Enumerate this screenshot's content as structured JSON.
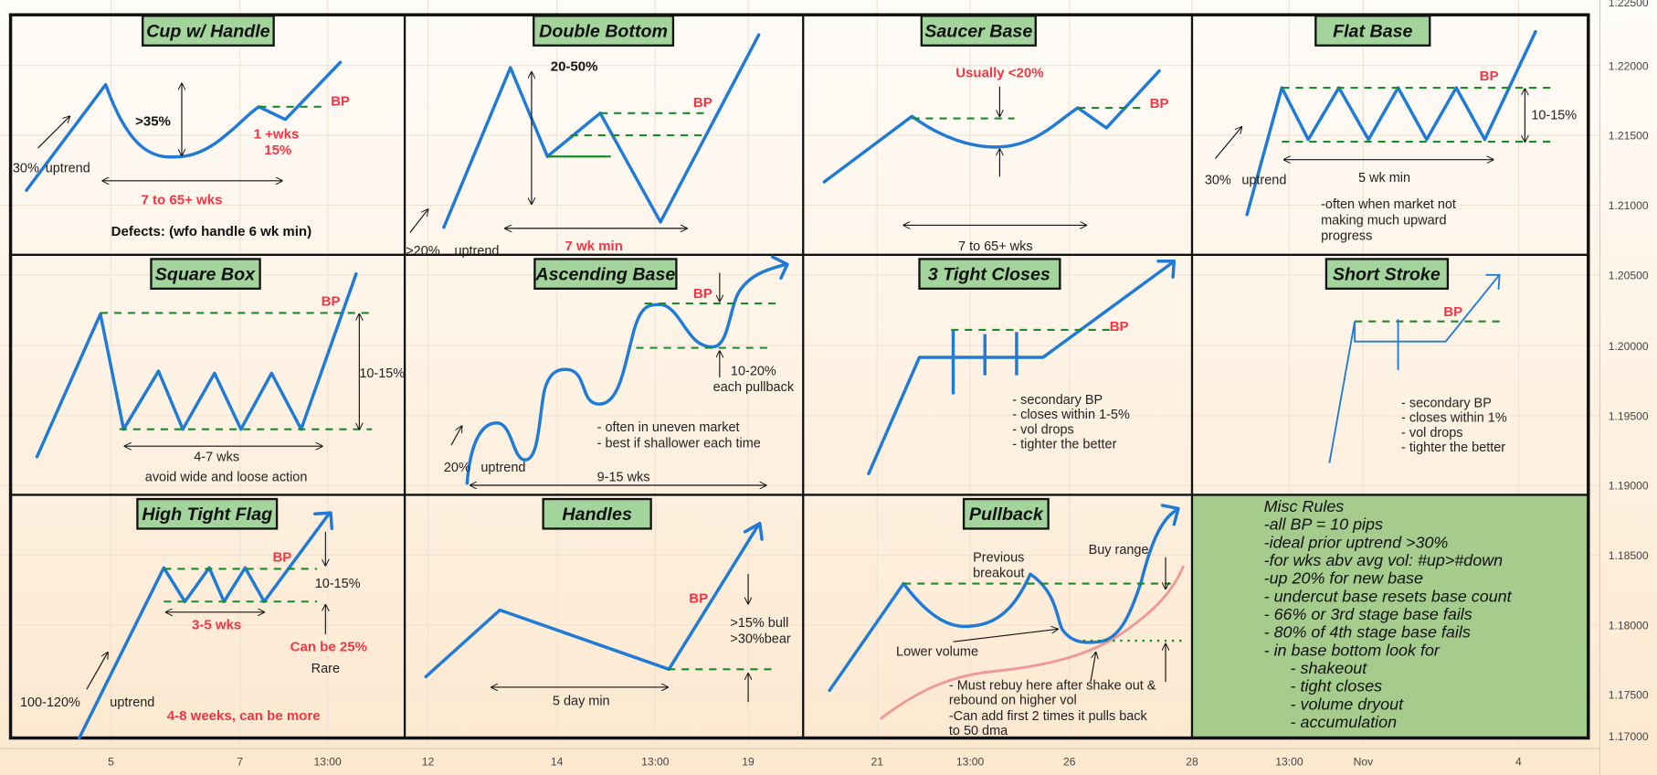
{
  "colors": {
    "line": "#1f7bd6",
    "breakpoint": "#f23645",
    "dashed": "#1a8a2a",
    "title_box": "#a3d49b",
    "misc_box": "#a5cc8d",
    "moving_average": "#ef9a9a"
  },
  "axis": {
    "price": [
      "1.22500",
      "1.22000",
      "1.21500",
      "1.21000",
      "1.20500",
      "1.20000",
      "1.19500",
      "1.19000",
      "1.18500",
      "1.18000",
      "1.17500",
      "1.17000"
    ],
    "time": [
      "5",
      "7",
      "13:00",
      "12",
      "14",
      "13:00",
      "19",
      "21",
      "13:00",
      "26",
      "28",
      "13:00",
      "Nov",
      "4"
    ]
  },
  "panels": {
    "cup": {
      "title": "Cup w/ Handle",
      "bp": "BP",
      "depth": ">35%",
      "handle1": "1 +wks",
      "handle2": "15%",
      "pct": "30%",
      "uptrend": "uptrend",
      "duration": "7 to 65+ wks",
      "defects": "Defects: (wfo handle 6 wk min)"
    },
    "double": {
      "title": "Double Bottom",
      "depth": "20-50%",
      "bp": "BP",
      "pct": ">20%",
      "uptrend": "uptrend",
      "duration": "7 wk min"
    },
    "saucer": {
      "title": "Saucer Base",
      "depth": "Usually <20%",
      "bp": "BP",
      "duration": "7 to 65+ wks"
    },
    "flat": {
      "title": "Flat Base",
      "bp": "BP",
      "depth": "10-15%",
      "pct": "30%",
      "uptrend": "uptrend",
      "duration": "5 wk min",
      "note1": "-often when market not",
      "note2": "making much upward",
      "note3": "progress"
    },
    "square": {
      "title": "Square Box",
      "bp": "BP",
      "depth": "10-15%",
      "duration": "4-7 wks",
      "note": "avoid wide and loose action"
    },
    "ascending": {
      "title": "Ascending Base",
      "bp": "BP",
      "pull1": "10-20%",
      "pull2": "each pullback",
      "note1": "- often in uneven market",
      "note2": "- best if shallower each time",
      "pct": "20%",
      "uptrend": "uptrend",
      "duration": "9-15 wks"
    },
    "tight": {
      "title": "3 Tight Closes",
      "bp": "BP",
      "notes": [
        "- secondary BP",
        "- closes within 1-5%",
        "- vol drops",
        "- tighter the better"
      ]
    },
    "stroke": {
      "title": "Short Stroke",
      "bp": "BP",
      "notes": [
        "- secondary BP",
        "- closes within 1%",
        "- vol drops",
        "- tighter the better"
      ]
    },
    "htf": {
      "title": "High Tight Flag",
      "bp": "BP",
      "depth": "10-15%",
      "duration": "3-5 wks",
      "alt": "Can be 25%",
      "rare": "Rare",
      "pct": "100-120%",
      "uptrend": "uptrend",
      "weeks": "4-8 weeks, can be more"
    },
    "handles": {
      "title": "Handles",
      "bp": "BP",
      "bull": ">15% bull",
      "bear": ">30%bear",
      "duration": "5 day min"
    },
    "pullback": {
      "title": "Pullback",
      "prev1": "Previous",
      "prev2": "breakout",
      "buy": "Buy range",
      "lowvol": "Lower volume",
      "notes": [
        "- Must rebuy here after shake out &",
        "rebound on higher vol",
        "-Can add first 2 times it pulls back",
        "to 50 dma"
      ]
    }
  },
  "misc": {
    "title": "Misc Rules",
    "rules": [
      "-all BP = 10 pips",
      "-ideal prior uptrend >30%",
      "-for wks abv avg vol: #up>#down",
      "-up 20% for new base",
      "- undercut base resets base count",
      "- 66% or 3rd stage base fails",
      "- 80% of 4th stage base fails",
      "- in base bottom look for"
    ],
    "sub": [
      "- shakeout",
      "- tight closes",
      "- volume dryout",
      "- accumulation"
    ]
  }
}
